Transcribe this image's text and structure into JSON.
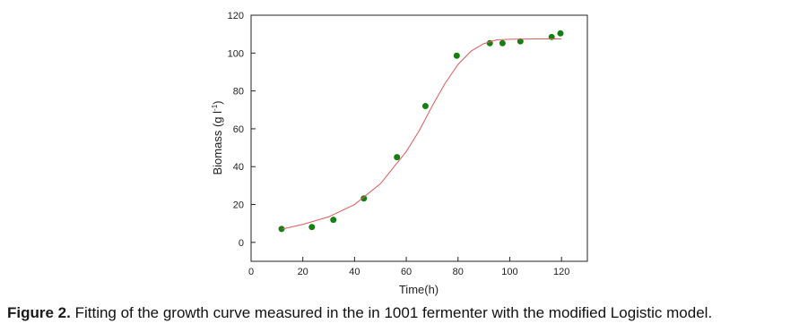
{
  "chart_data": {
    "type": "scatter",
    "x_label": "Time(h)",
    "y_label": {
      "text": "Biomass (g l",
      "superscript": "-1",
      "suffix": ")"
    },
    "xlim": [
      0,
      130
    ],
    "xticks": [
      0,
      20,
      40,
      60,
      80,
      100,
      120
    ],
    "ylim": [
      -10,
      120
    ],
    "yticks": [
      0,
      20,
      40,
      60,
      80,
      100,
      120
    ],
    "series": [
      {
        "type": "scatter",
        "color": "#148014",
        "x": [
          11.8,
          23.5,
          31.8,
          43.6,
          56.4,
          67.4,
          79.5,
          92.3,
          97.2,
          104.1,
          116.2,
          119.6
        ],
        "values": [
          7.1,
          8.1,
          11.9,
          23.2,
          45,
          72,
          98.6,
          105.2,
          105.2,
          106.2,
          108.5,
          110.4
        ]
      },
      {
        "type": "line",
        "color": "#e05a5a",
        "x": [
          12,
          20,
          30,
          40,
          50,
          60,
          65,
          70,
          75,
          80,
          85,
          90,
          95,
          100,
          110,
          120
        ],
        "values": [
          7,
          9.5,
          13.5,
          20,
          31,
          48,
          59,
          72,
          84,
          94,
          101,
          105,
          107,
          107.3,
          107.5,
          107.5
        ]
      }
    ]
  },
  "caption": {
    "label": "Figure 2.",
    "text": " Fitting of the growth curve measured in the in 1001 fermenter with the modified Logistic model."
  }
}
